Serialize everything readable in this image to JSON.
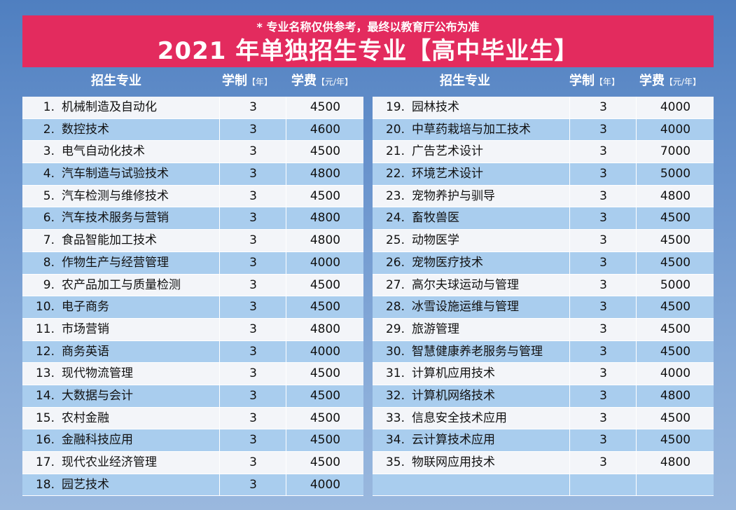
{
  "banner": {
    "note": "* 专业名称仅供参考，最终以教育厅公布为准",
    "title": "2021 年单独招生专业【高中毕业生】"
  },
  "headers": {
    "major": "招生专业",
    "duration": "学制",
    "duration_unit": "【年】",
    "fee": "学费",
    "fee_unit": "【元/年】"
  },
  "left_rows": [
    {
      "num": "1.",
      "name": "机械制造及自动化",
      "years": "3",
      "fee": "4500"
    },
    {
      "num": "2.",
      "name": "数控技术",
      "years": "3",
      "fee": "4600"
    },
    {
      "num": "3.",
      "name": "电气自动化技术",
      "years": "3",
      "fee": "4500"
    },
    {
      "num": "4.",
      "name": "汽车制造与试验技术",
      "years": "3",
      "fee": "4800"
    },
    {
      "num": "5.",
      "name": "汽车检测与维修技术",
      "years": "3",
      "fee": "4500"
    },
    {
      "num": "6.",
      "name": "汽车技术服务与营销",
      "years": "3",
      "fee": "4800"
    },
    {
      "num": "7.",
      "name": "食品智能加工技术",
      "years": "3",
      "fee": "4800"
    },
    {
      "num": "8.",
      "name": "作物生产与经营管理",
      "years": "3",
      "fee": "4000"
    },
    {
      "num": "9.",
      "name": "农产品加工与质量检测",
      "years": "3",
      "fee": "4500"
    },
    {
      "num": "10.",
      "name": "电子商务",
      "years": "3",
      "fee": "4500"
    },
    {
      "num": "11.",
      "name": "市场营销",
      "years": "3",
      "fee": "4800"
    },
    {
      "num": "12.",
      "name": "商务英语",
      "years": "3",
      "fee": "4000"
    },
    {
      "num": "13.",
      "name": "现代物流管理",
      "years": "3",
      "fee": "4500"
    },
    {
      "num": "14.",
      "name": "大数据与会计",
      "years": "3",
      "fee": "4500"
    },
    {
      "num": "15.",
      "name": "农村金融",
      "years": "3",
      "fee": "4500"
    },
    {
      "num": "16.",
      "name": "金融科技应用",
      "years": "3",
      "fee": "4500"
    },
    {
      "num": "17.",
      "name": "现代农业经济管理",
      "years": "3",
      "fee": "4500"
    },
    {
      "num": "18.",
      "name": "园艺技术",
      "years": "3",
      "fee": "4000"
    }
  ],
  "right_rows": [
    {
      "num": "19.",
      "name": "园林技术",
      "years": "3",
      "fee": "4000"
    },
    {
      "num": "20.",
      "name": "中草药栽培与加工技术",
      "years": "3",
      "fee": "4000"
    },
    {
      "num": "21.",
      "name": "广告艺术设计",
      "years": "3",
      "fee": "7000"
    },
    {
      "num": "22.",
      "name": "环境艺术设计",
      "years": "3",
      "fee": "5000"
    },
    {
      "num": "23.",
      "name": "宠物养护与驯导",
      "years": "3",
      "fee": "4800"
    },
    {
      "num": "24.",
      "name": "畜牧兽医",
      "years": "3",
      "fee": "4500"
    },
    {
      "num": "25.",
      "name": "动物医学",
      "years": "3",
      "fee": "4500"
    },
    {
      "num": "26.",
      "name": "宠物医疗技术",
      "years": "3",
      "fee": "4500"
    },
    {
      "num": "27.",
      "name": "高尔夫球运动与管理",
      "years": "3",
      "fee": "5000"
    },
    {
      "num": "28.",
      "name": "冰雪设施运维与管理",
      "years": "3",
      "fee": "4500"
    },
    {
      "num": "29.",
      "name": "旅游管理",
      "years": "3",
      "fee": "4500"
    },
    {
      "num": "30.",
      "name": "智慧健康养老服务与管理",
      "years": "3",
      "fee": "4500"
    },
    {
      "num": "31.",
      "name": "计算机应用技术",
      "years": "3",
      "fee": "4000"
    },
    {
      "num": "32.",
      "name": "计算机网络技术",
      "years": "3",
      "fee": "4800"
    },
    {
      "num": "33.",
      "name": "信息安全技术应用",
      "years": "3",
      "fee": "4500"
    },
    {
      "num": "34.",
      "name": "云计算技术应用",
      "years": "3",
      "fee": "4500"
    },
    {
      "num": "35.",
      "name": "物联网应用技术",
      "years": "3",
      "fee": "4800"
    },
    {
      "num": "",
      "name": "",
      "years": "",
      "fee": ""
    }
  ]
}
